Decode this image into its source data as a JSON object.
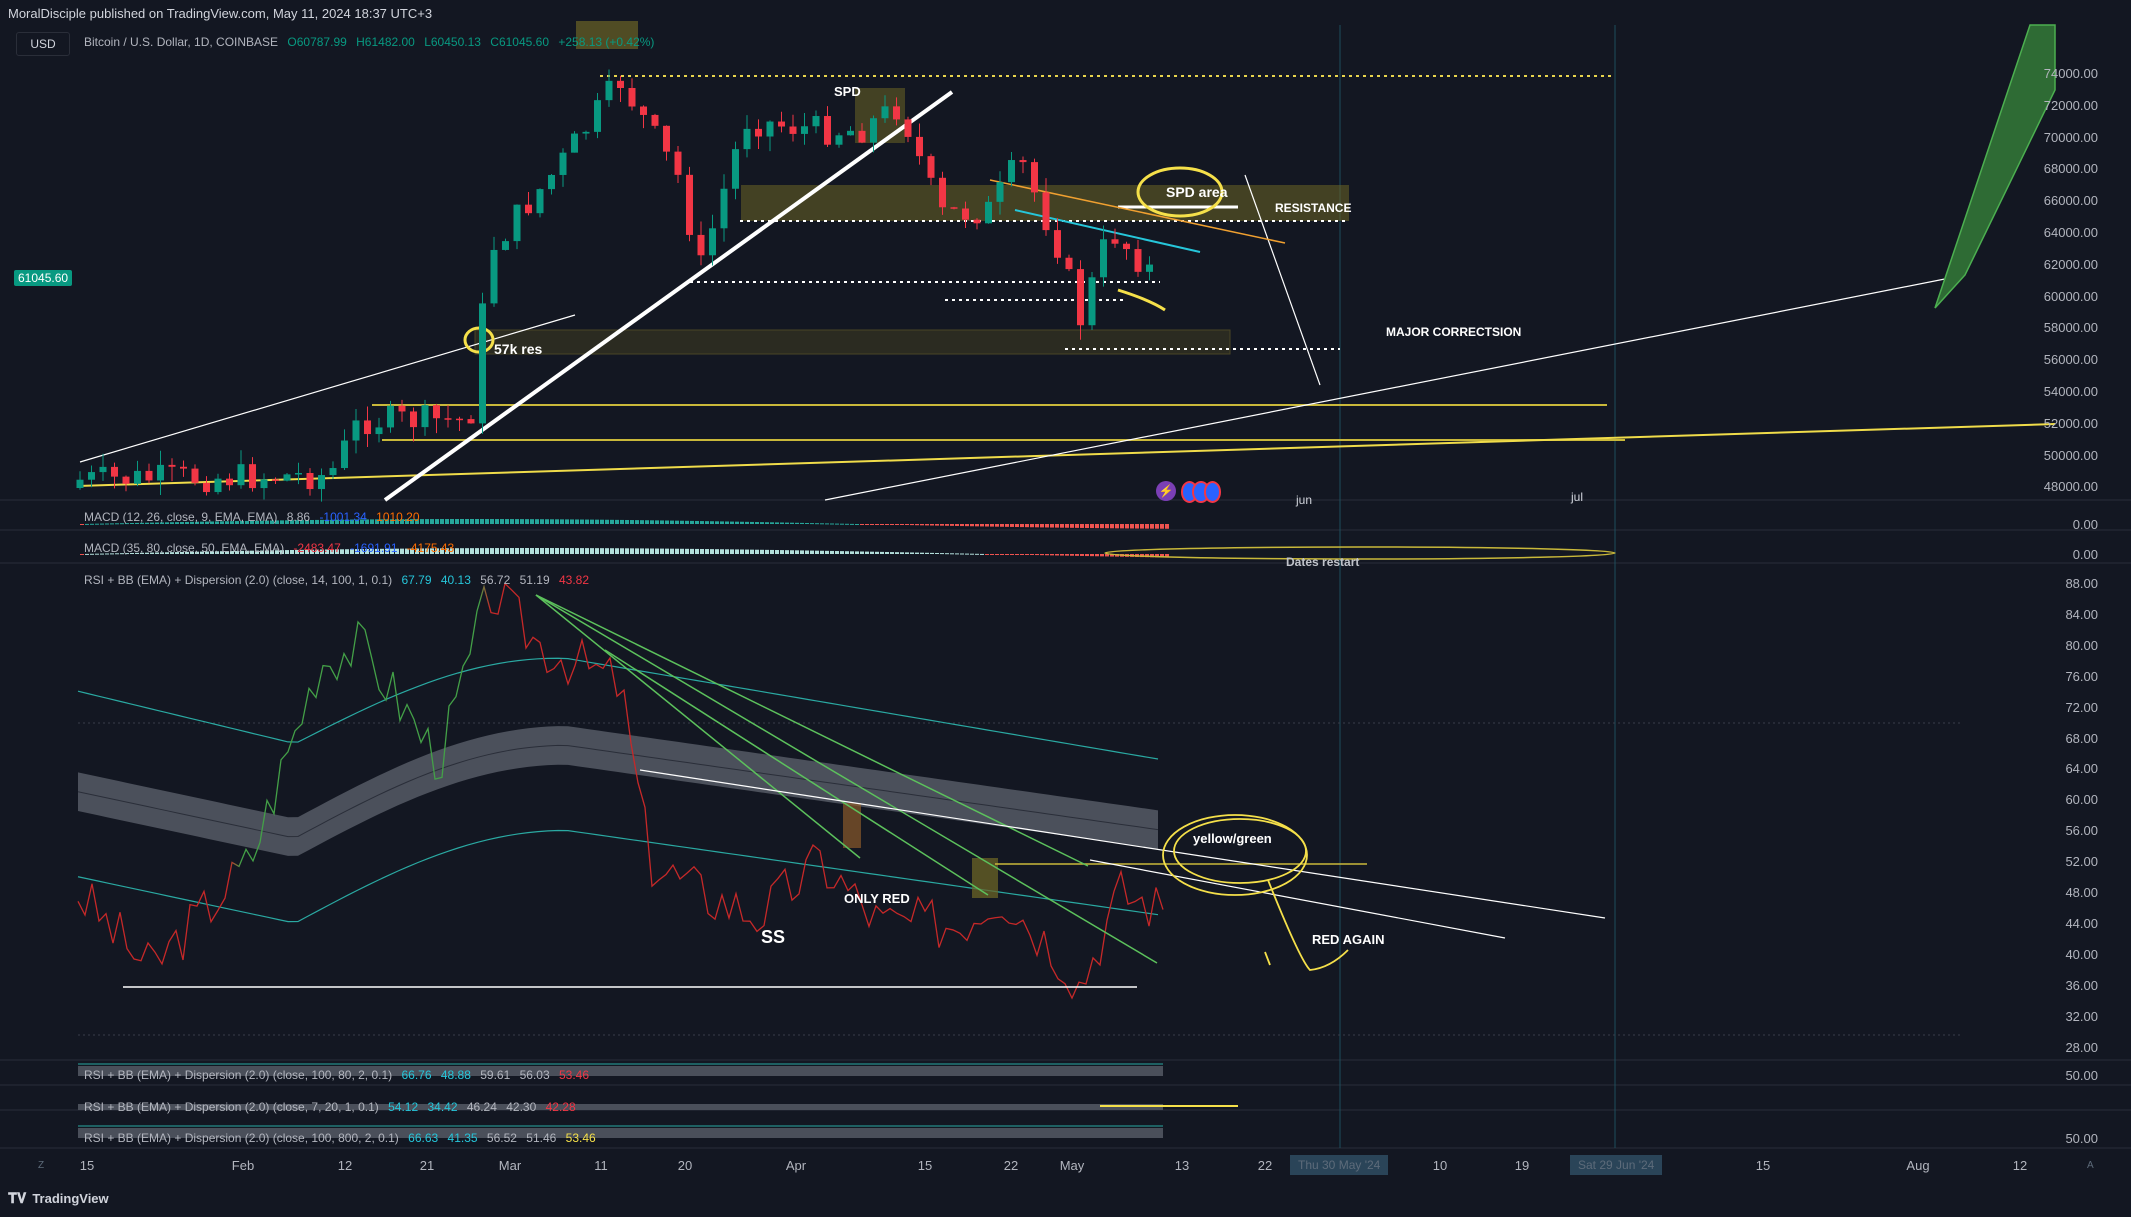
{
  "header": {
    "published": "MoralDisciple published on TradingView.com, May 11, 2024 18:37 UTC+3",
    "currency": "USD"
  },
  "symbol": {
    "name": "Bitcoin / U.S. Dollar, 1D, COINBASE",
    "open": "O60787.99",
    "high": "H61482.00",
    "low": "L60450.13",
    "close": "C61045.60",
    "change": "+258.13 (+0.42%)",
    "current_price": "61045.60"
  },
  "price_axis": [
    "74000.00",
    "72000.00",
    "70000.00",
    "68000.00",
    "66000.00",
    "64000.00",
    "62000.00",
    "60000.00",
    "58000.00",
    "56000.00",
    "54000.00",
    "52000.00",
    "50000.00",
    "48000.00"
  ],
  "macd1": {
    "label": "MACD (12, 26, close, 9, EMA, EMA)",
    "v1": "8.86",
    "v2": "-1001.34",
    "v3": "1010.20",
    "axis": "0.00"
  },
  "macd2": {
    "label": "MACD (35, 80, close, 50, EMA, EMA)",
    "v1": "-2483.47",
    "v2": "-1691.91",
    "v3": "-4175.43",
    "axis": "0.00"
  },
  "rsi_main": {
    "label": "RSI + BB (EMA) + Dispersion (2.0) (close, 14, 100, 1, 0.1)",
    "values": [
      "67.79",
      "40.13",
      "56.72",
      "51.19",
      "43.82"
    ],
    "axis": [
      "88.00",
      "84.00",
      "80.00",
      "76.00",
      "72.00",
      "68.00",
      "64.00",
      "60.00",
      "56.00",
      "52.00",
      "48.00",
      "44.00",
      "40.00",
      "36.00",
      "32.00",
      "28.00"
    ]
  },
  "rsi2": {
    "label": "RSI + BB (EMA) + Dispersion (2.0) (close, 100, 80, 2, 0.1)",
    "values": [
      "66.76",
      "48.88",
      "59.61",
      "56.03",
      "53.46"
    ],
    "axis": "50.00"
  },
  "rsi3": {
    "label": "RSI + BB (EMA) + Dispersion (2.0) (close, 7, 20, 1, 0.1)",
    "values": [
      "54.12",
      "34.42",
      "46.24",
      "42.30",
      "42.28"
    ]
  },
  "rsi4": {
    "label": "RSI + BB (EMA) + Dispersion (2.0) (close, 100, 800, 2, 0.1)",
    "values": [
      "66.63",
      "41.35",
      "56.52",
      "51.46",
      "53.46"
    ],
    "axis": "50.00"
  },
  "time_axis": [
    "15",
    "Feb",
    "12",
    "21",
    "Mar",
    "11",
    "20",
    "Apr",
    "15",
    "22",
    "May",
    "13",
    "22",
    "10",
    "19",
    "15",
    "Aug",
    "12"
  ],
  "date_boxes": [
    "Thu 30 May '24",
    "Sat 29 Jun '24"
  ],
  "month_marks": [
    "jun",
    "jul"
  ],
  "annotations": {
    "spd": "SPD",
    "spd_area": "SPD area",
    "resistance": "RESISTANCE",
    "res57k": "57k res",
    "major_correction": "MAJOR CORRECTSION",
    "yellow_green": "yellow/green",
    "only_red": "ONLY RED",
    "ss": "SS",
    "red_again": "RED AGAIN",
    "dates_restart": "Dates restart"
  },
  "footer": {
    "brand": "TradingView"
  },
  "colors": {
    "bg": "#131722",
    "up": "#089981",
    "down": "#f23645",
    "yellow": "#ffeb3b",
    "grid": "#2a2e39"
  }
}
